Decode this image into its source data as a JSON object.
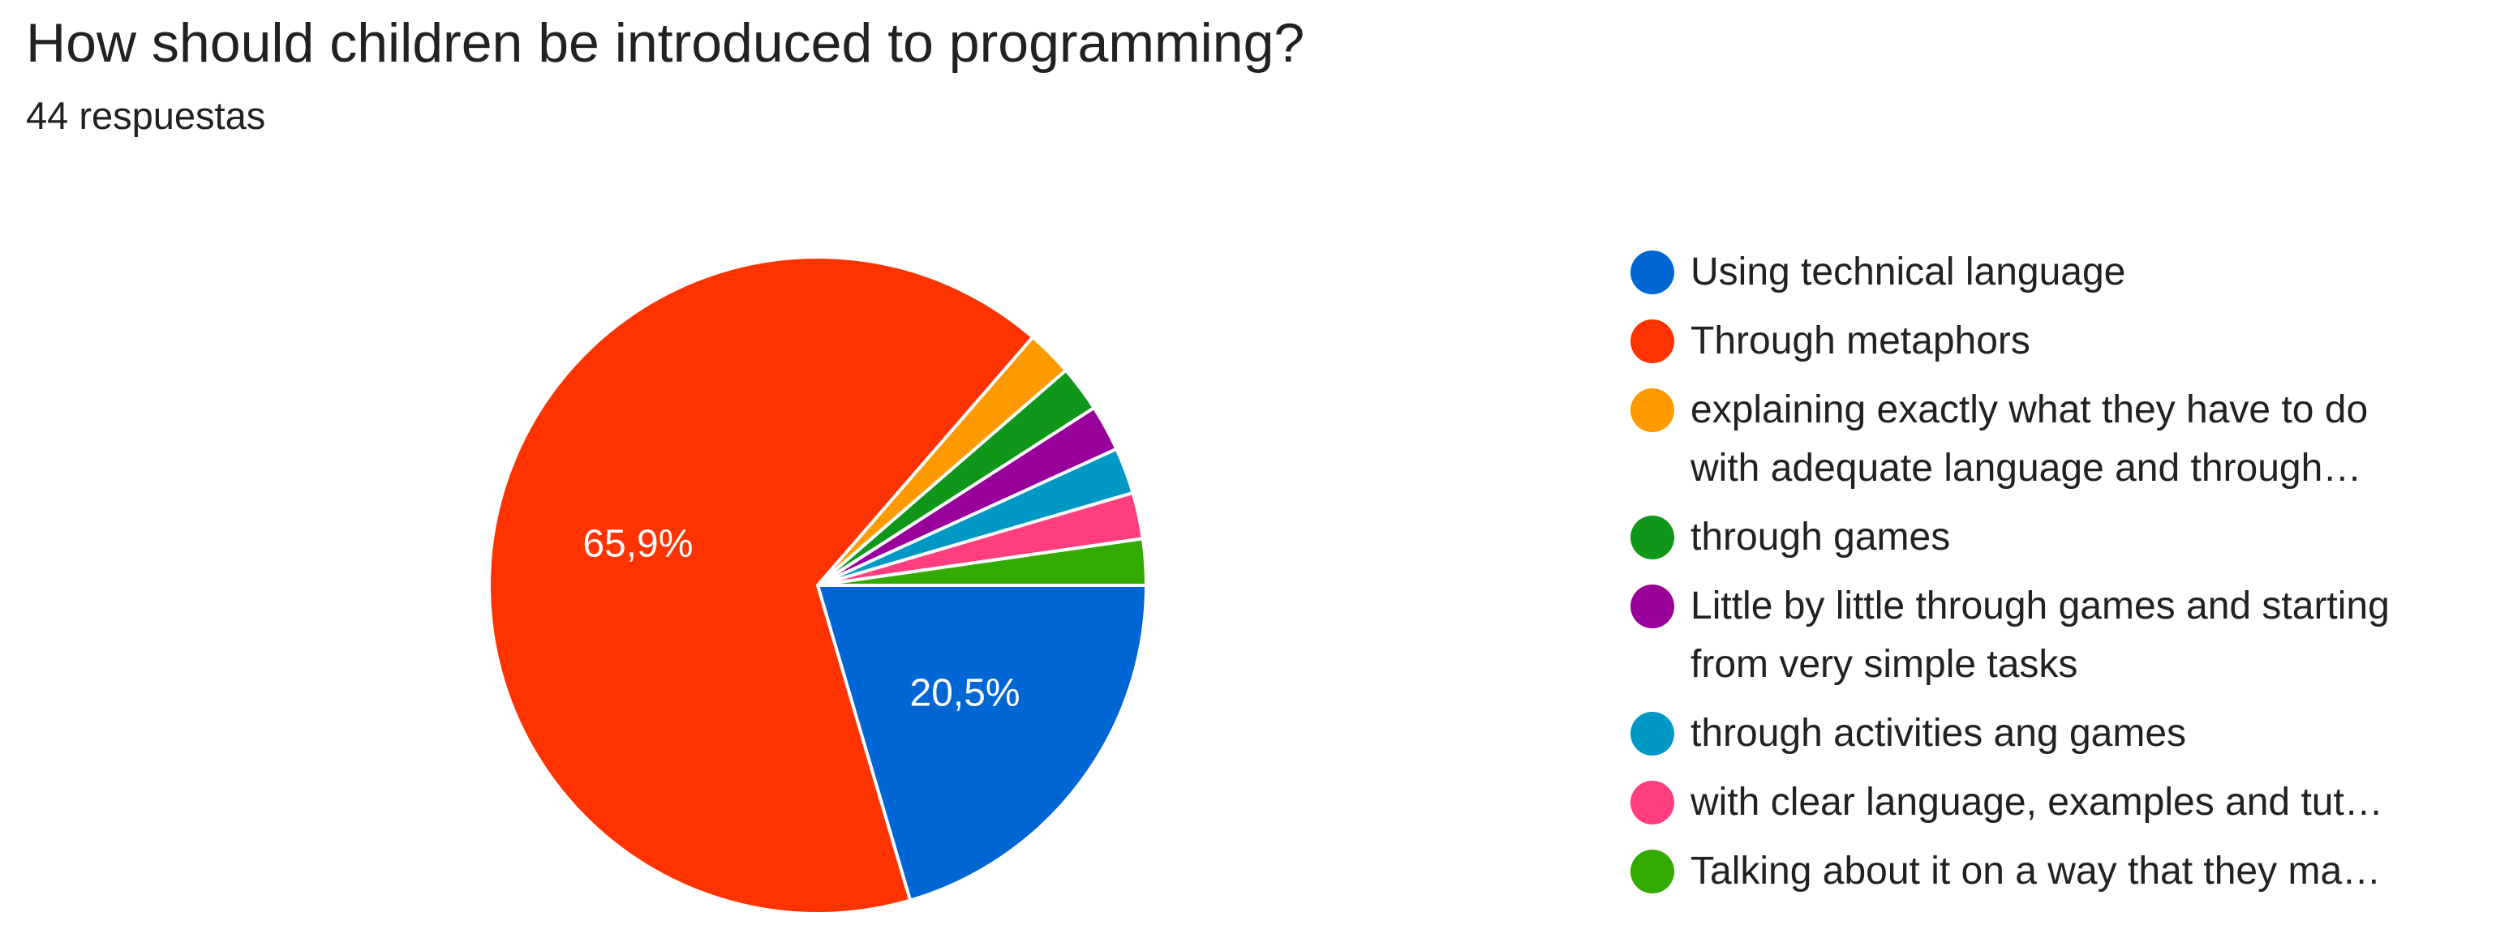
{
  "header": {
    "title": "How should children be introduced to programming?",
    "response_count": "44 respuestas"
  },
  "chart_data": {
    "type": "pie",
    "title": "How should children be introduced to programming?",
    "subtitle": "44 respuestas",
    "slices": [
      {
        "label": "Using technical language",
        "legend_lines": [
          "Using technical language"
        ],
        "value": 9,
        "percent_label": "20,5%",
        "color": "#0066d4"
      },
      {
        "label": "Through metaphors",
        "legend_lines": [
          "Through metaphors"
        ],
        "value": 29,
        "percent_label": "65,9%",
        "color": "#ff3300"
      },
      {
        "label": "explaining exactly what they have to do with adequate language and through…",
        "legend_lines": [
          "explaining exactly what they have to do",
          "with adequate language and through…"
        ],
        "value": 1,
        "color": "#ff9900"
      },
      {
        "label": "through games",
        "legend_lines": [
          "through games"
        ],
        "value": 1,
        "color": "#109618"
      },
      {
        "label": "Little by little through games and starting from very simple tasks",
        "legend_lines": [
          "Little by little through games and starting",
          "from very simple tasks"
        ],
        "value": 1,
        "color": "#990099"
      },
      {
        "label": "through activities ang games",
        "legend_lines": [
          "through activities ang games"
        ],
        "value": 1,
        "color": "#0099c6"
      },
      {
        "label": "with clear language, examples and tut…",
        "legend_lines": [
          "with clear language, examples and tut…"
        ],
        "value": 1,
        "color": "#ff3d7f"
      },
      {
        "label": "Talking about it on a way that they ma…",
        "legend_lines": [
          "Talking about it on a way that they ma…"
        ],
        "value": 1,
        "color": "#33aa00"
      }
    ],
    "legend_position": "right"
  }
}
